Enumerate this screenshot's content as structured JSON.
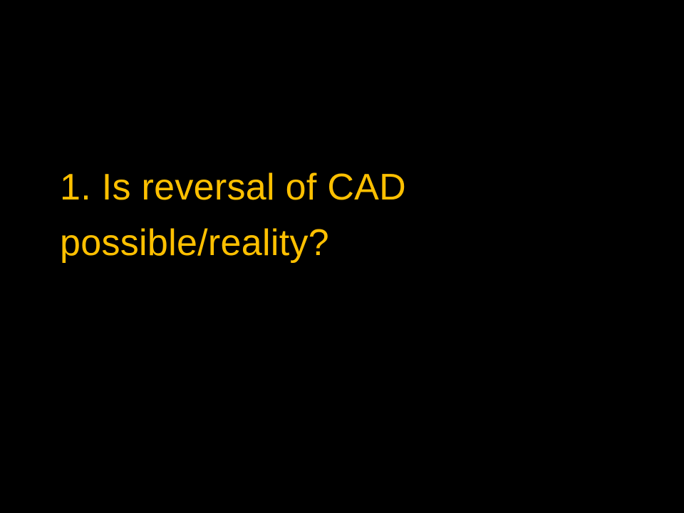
{
  "slide": {
    "background_color": "#000000",
    "text_color": "#FFC000",
    "question_lines": [
      "1. Is reversal of CAD",
      "possible/reality?"
    ]
  }
}
